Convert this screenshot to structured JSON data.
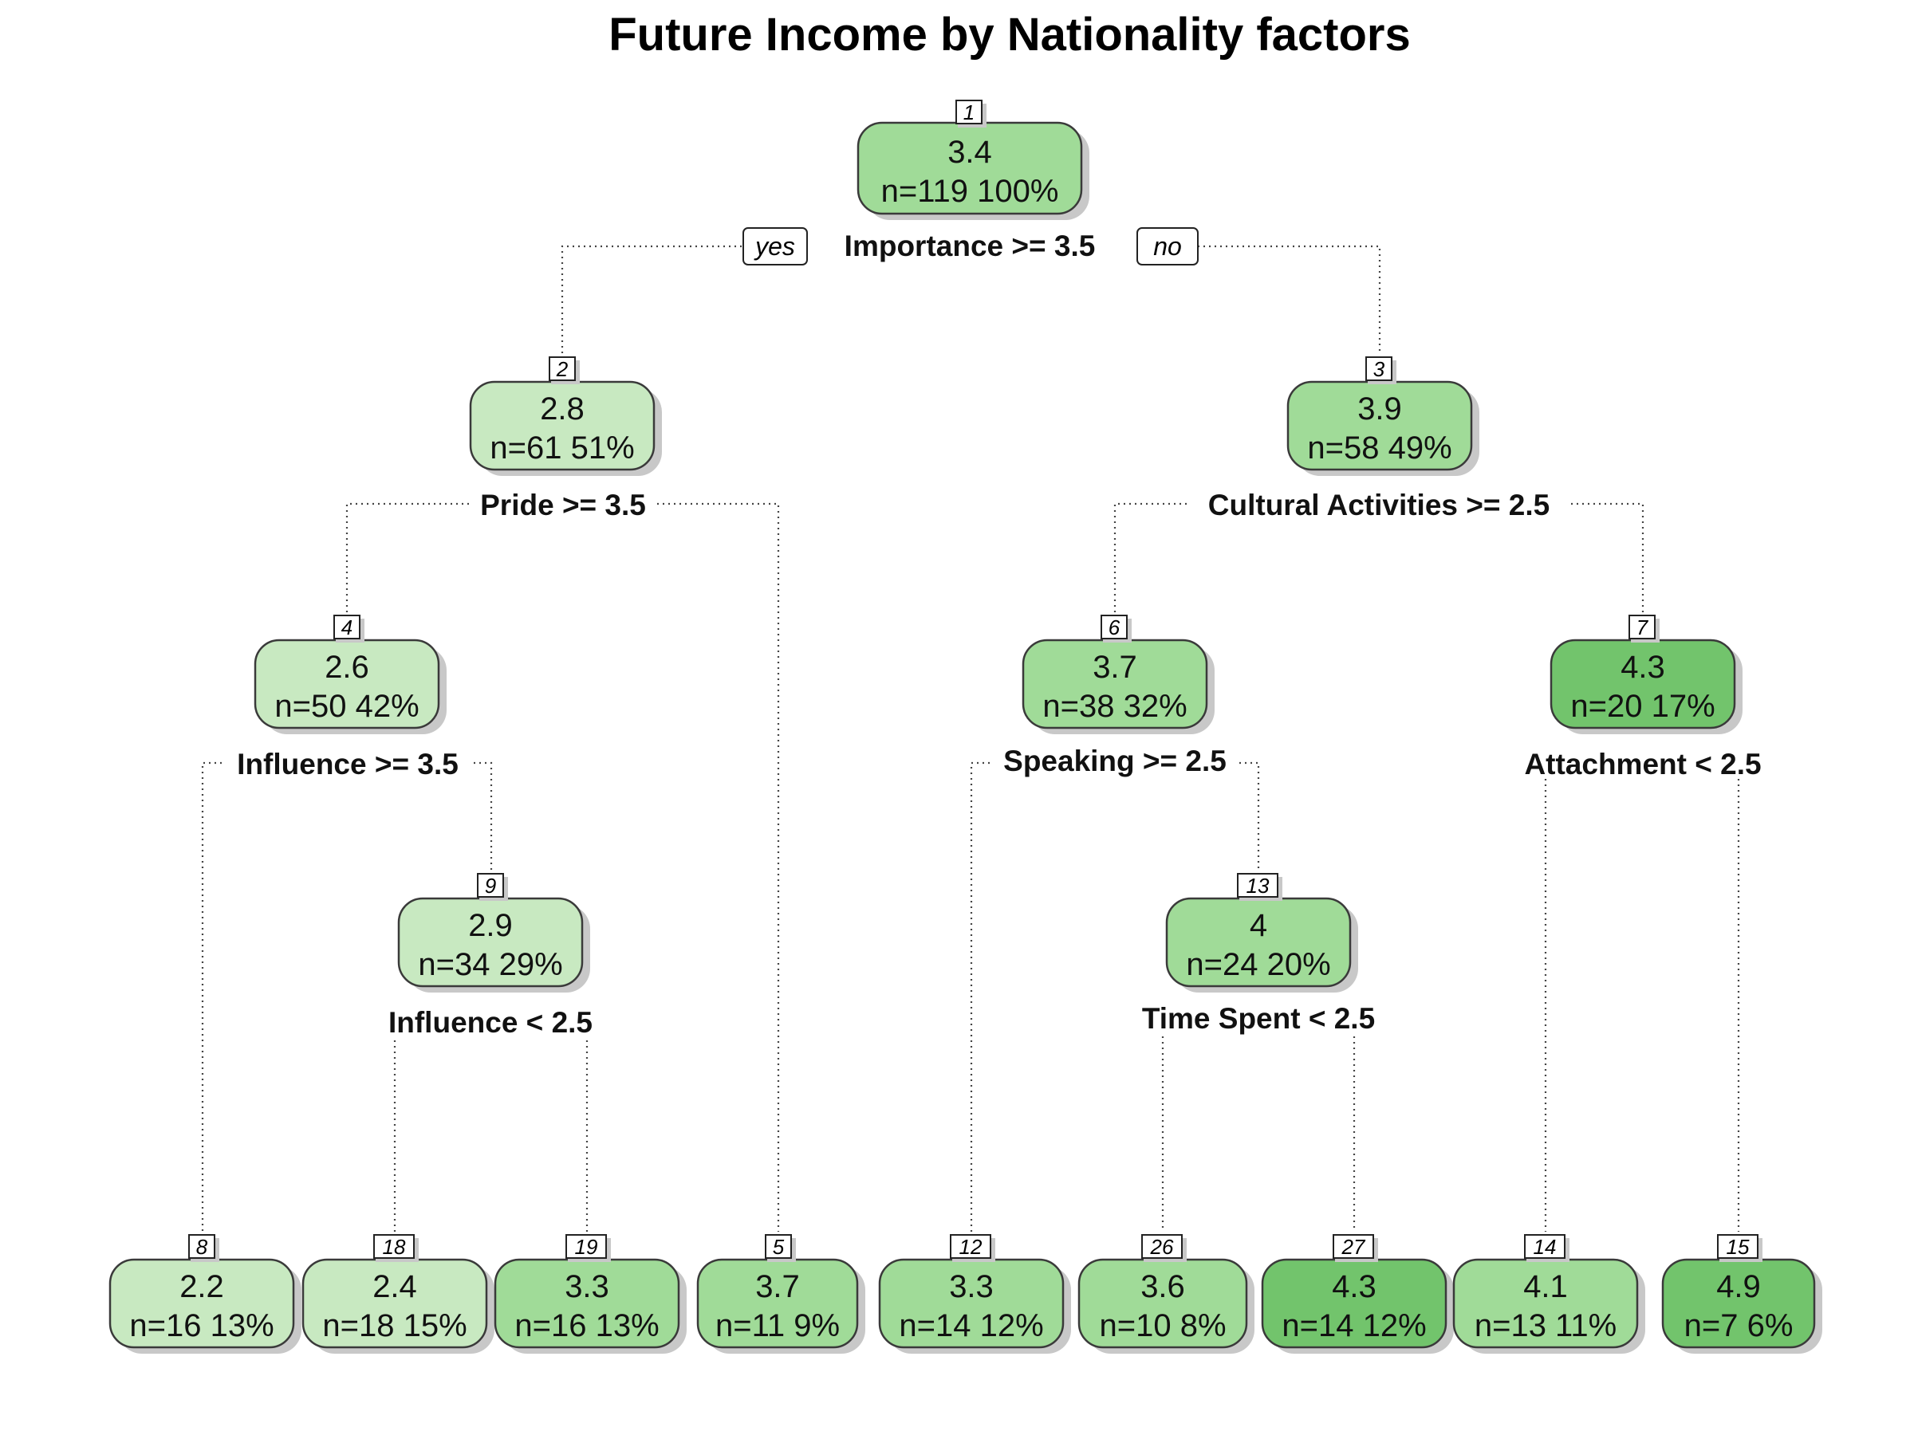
{
  "title": "Future Income by Nationality factors",
  "colors": {
    "very_light": "#c8e9c1",
    "light": "#a0db98",
    "medium": "#98d68d",
    "dark": "#72c46c"
  },
  "nodes": {
    "n1": {
      "id": "1",
      "value": "3.4",
      "count": "n=119  100%"
    },
    "n2": {
      "id": "2",
      "value": "2.8",
      "count": "n=61  51%"
    },
    "n3": {
      "id": "3",
      "value": "3.9",
      "count": "n=58  49%"
    },
    "n4": {
      "id": "4",
      "value": "2.6",
      "count": "n=50  42%"
    },
    "n6": {
      "id": "6",
      "value": "3.7",
      "count": "n=38  32%"
    },
    "n7": {
      "id": "7",
      "value": "4.3",
      "count": "n=20  17%"
    },
    "n9": {
      "id": "9",
      "value": "2.9",
      "count": "n=34  29%"
    },
    "n13": {
      "id": "13",
      "value": "4",
      "count": "n=24  20%"
    },
    "n8": {
      "id": "8",
      "value": "2.2",
      "count": "n=16  13%"
    },
    "n18": {
      "id": "18",
      "value": "2.4",
      "count": "n=18  15%"
    },
    "n19": {
      "id": "19",
      "value": "3.3",
      "count": "n=16  13%"
    },
    "n5": {
      "id": "5",
      "value": "3.7",
      "count": "n=11  9%"
    },
    "n12": {
      "id": "12",
      "value": "3.3",
      "count": "n=14  12%"
    },
    "n26": {
      "id": "26",
      "value": "3.6",
      "count": "n=10  8%"
    },
    "n27": {
      "id": "27",
      "value": "4.3",
      "count": "n=14  12%"
    },
    "n14": {
      "id": "14",
      "value": "4.1",
      "count": "n=13  11%"
    },
    "n15": {
      "id": "15",
      "value": "4.9",
      "count": "n=7  6%"
    }
  },
  "splits": {
    "s1": "Importance >= 3.5",
    "s2": "Pride >= 3.5",
    "s3": "Cultural Activities >= 2.5",
    "s4": "Influence >= 3.5",
    "s9": "Influence < 2.5",
    "s6": "Speaking >= 2.5",
    "s13": "Time Spent < 2.5",
    "s7": "Attachment < 2.5"
  },
  "branch_labels": {
    "yes": "yes",
    "no": "no"
  }
}
